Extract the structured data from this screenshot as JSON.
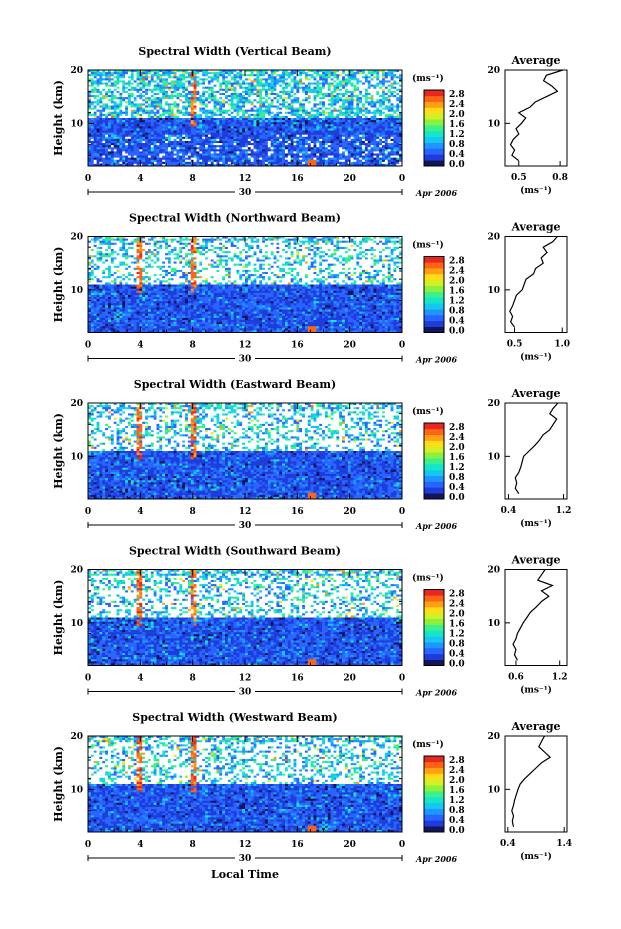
{
  "figure": {
    "x_axis_label": "Local Time",
    "date_day": "30",
    "date_month_year": "Apr 2006",
    "colorbar_unit": "(ms⁻¹)",
    "colorbar_ticks": [
      "2.8",
      "2.4",
      "2.0",
      "1.6",
      "1.2",
      "0.8",
      "0.4",
      "0.0"
    ],
    "height_label": "Height (km)",
    "average_title": "Average",
    "average_xlabel": "(ms⁻¹)"
  },
  "colors": {
    "colorscale": [
      "#14145a",
      "#1e3cdc",
      "#2864ff",
      "#1e96ff",
      "#14c8f0",
      "#14e6c8",
      "#3cf08c",
      "#8cf03c",
      "#d2f028",
      "#ffdc14",
      "#ffa014",
      "#ff6414",
      "#e6281e"
    ],
    "missing": "#ffffff",
    "axis": "#000000"
  },
  "chart_data": [
    {
      "type": "heatmap",
      "title": "Spectral Width (Vertical Beam)",
      "x_ticks": [
        "0",
        "4",
        "8",
        "12",
        "16",
        "20",
        "0"
      ],
      "xlim": [
        0,
        24
      ],
      "y_ticks": [
        "20",
        "10"
      ],
      "ylim": [
        2,
        20
      ],
      "ylabel": "Height (km)",
      "colorbar_range": [
        0,
        3.0
      ],
      "profile": {
        "title": "Average",
        "x_ticks": [
          "0.5",
          "0.8"
        ],
        "xlim": [
          0.4,
          0.85
        ],
        "y_ticks": [
          "20",
          "10"
        ],
        "ylim": [
          2,
          20
        ],
        "heights": [
          3,
          4,
          5,
          6,
          7,
          8,
          9,
          10,
          11,
          12,
          13,
          14,
          15,
          16,
          17,
          18,
          19,
          20
        ],
        "values": [
          0.5,
          0.45,
          0.47,
          0.44,
          0.46,
          0.5,
          0.48,
          0.52,
          0.55,
          0.5,
          0.58,
          0.62,
          0.7,
          0.78,
          0.74,
          0.68,
          0.7,
          0.82
        ]
      }
    },
    {
      "type": "heatmap",
      "title": "Spectral Width (Northward Beam)",
      "x_ticks": [
        "0",
        "4",
        "8",
        "12",
        "16",
        "20",
        "0"
      ],
      "xlim": [
        0,
        24
      ],
      "y_ticks": [
        "20",
        "10"
      ],
      "ylim": [
        2,
        20
      ],
      "ylabel": "Height (km)",
      "colorbar_range": [
        0,
        3.0
      ],
      "profile": {
        "title": "Average",
        "x_ticks": [
          "0.5",
          "1.0"
        ],
        "xlim": [
          0.4,
          1.05
        ],
        "y_ticks": [
          "20",
          "10"
        ],
        "ylim": [
          2,
          20
        ],
        "heights": [
          3,
          4,
          5,
          6,
          7,
          8,
          9,
          10,
          11,
          12,
          13,
          14,
          15,
          16,
          17,
          18,
          19,
          20
        ],
        "values": [
          0.5,
          0.46,
          0.48,
          0.45,
          0.48,
          0.5,
          0.52,
          0.58,
          0.6,
          0.62,
          0.7,
          0.72,
          0.8,
          0.78,
          0.84,
          0.8,
          0.9,
          0.95
        ]
      }
    },
    {
      "type": "heatmap",
      "title": "Spectral Width (Eastward Beam)",
      "x_ticks": [
        "0",
        "4",
        "8",
        "12",
        "16",
        "20",
        "0"
      ],
      "xlim": [
        0,
        24
      ],
      "y_ticks": [
        "20",
        "10"
      ],
      "ylim": [
        2,
        20
      ],
      "ylabel": "Height (km)",
      "colorbar_range": [
        0,
        3.0
      ],
      "profile": {
        "title": "Average",
        "x_ticks": [
          "0.4",
          "1.2"
        ],
        "xlim": [
          0.35,
          1.25
        ],
        "y_ticks": [
          "20",
          "10"
        ],
        "ylim": [
          2,
          20
        ],
        "heights": [
          3,
          4,
          5,
          6,
          7,
          8,
          9,
          10,
          11,
          12,
          13,
          14,
          15,
          16,
          17,
          18,
          19,
          20
        ],
        "values": [
          0.55,
          0.5,
          0.52,
          0.5,
          0.55,
          0.58,
          0.6,
          0.62,
          0.7,
          0.78,
          0.85,
          0.9,
          1.0,
          1.05,
          1.1,
          1.0,
          1.05,
          1.12
        ]
      }
    },
    {
      "type": "heatmap",
      "title": "Spectral Width (Southward Beam)",
      "x_ticks": [
        "0",
        "4",
        "8",
        "12",
        "16",
        "20",
        "0"
      ],
      "xlim": [
        0,
        24
      ],
      "y_ticks": [
        "20",
        "10"
      ],
      "ylim": [
        2,
        20
      ],
      "ylabel": "Height (km)",
      "colorbar_range": [
        0,
        3.0
      ],
      "profile": {
        "title": "Average",
        "x_ticks": [
          "0.6",
          "1.2"
        ],
        "xlim": [
          0.45,
          1.3
        ],
        "y_ticks": [
          "20",
          "10"
        ],
        "ylim": [
          2,
          20
        ],
        "heights": [
          3,
          4,
          5,
          6,
          7,
          8,
          9,
          10,
          11,
          12,
          13,
          14,
          15,
          16,
          17,
          18,
          19,
          20
        ],
        "values": [
          0.62,
          0.58,
          0.6,
          0.56,
          0.6,
          0.62,
          0.66,
          0.7,
          0.75,
          0.8,
          0.88,
          0.95,
          1.05,
          0.95,
          1.1,
          0.9,
          0.95,
          1.0
        ]
      }
    },
    {
      "type": "heatmap",
      "title": "Spectral Width (Westward Beam)",
      "x_ticks": [
        "0",
        "4",
        "8",
        "12",
        "16",
        "20",
        "0"
      ],
      "xlim": [
        0,
        24
      ],
      "y_ticks": [
        "20",
        "10"
      ],
      "ylim": [
        2,
        20
      ],
      "ylabel": "Height (km)",
      "colorbar_range": [
        0,
        3.0
      ],
      "profile": {
        "title": "Average",
        "x_ticks": [
          "0.4",
          "1.4"
        ],
        "xlim": [
          0.35,
          1.45
        ],
        "y_ticks": [
          "20",
          "10"
        ],
        "ylim": [
          2,
          20
        ],
        "heights": [
          3,
          4,
          5,
          6,
          7,
          8,
          9,
          10,
          11,
          12,
          13,
          14,
          15,
          16,
          17,
          18,
          19,
          20
        ],
        "values": [
          0.5,
          0.48,
          0.5,
          0.47,
          0.5,
          0.52,
          0.55,
          0.58,
          0.62,
          0.7,
          0.8,
          0.9,
          1.0,
          1.15,
          1.05,
          0.95,
          1.0,
          1.05
        ]
      }
    }
  ]
}
